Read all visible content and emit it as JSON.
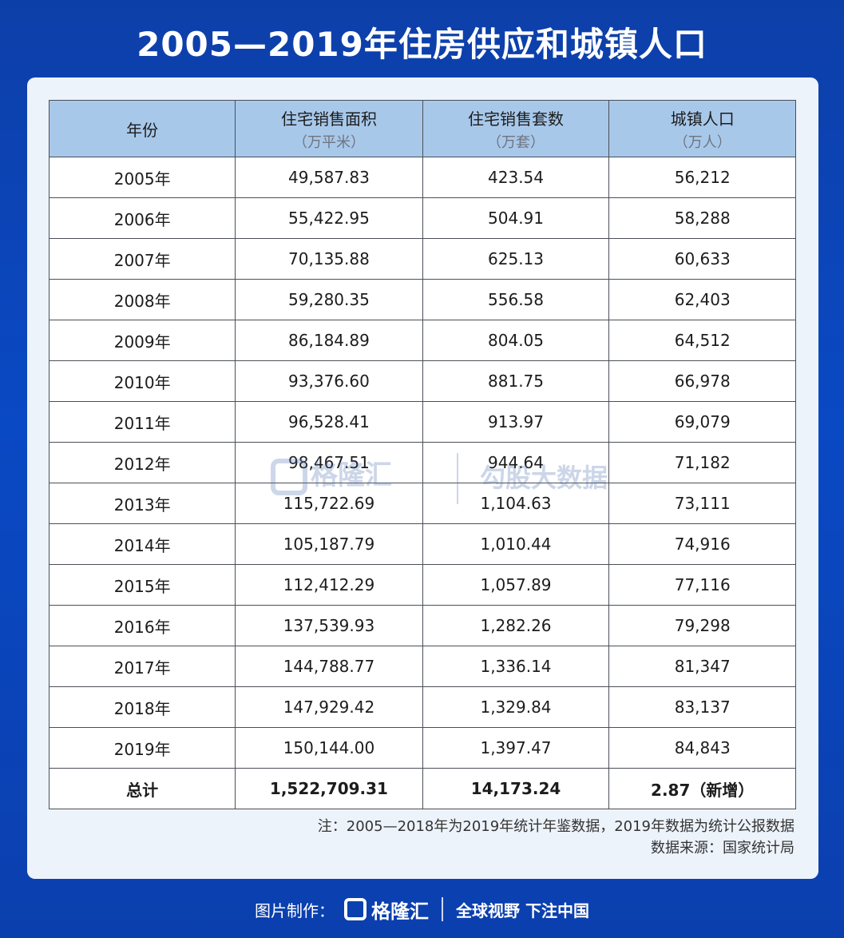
{
  "title": "2005—2019年住房供应和城镇人口",
  "header": {
    "year": "年份",
    "area": "住宅销售面积",
    "area_unit": "（万平米）",
    "units": "住宅销售套数",
    "units_unit": "（万套）",
    "pop": "城镇人口",
    "pop_unit": "（万人）"
  },
  "rows": [
    {
      "year": "2005年",
      "area": "49,587.83",
      "units": "423.54",
      "pop": "56,212"
    },
    {
      "year": "2006年",
      "area": "55,422.95",
      "units": "504.91",
      "pop": "58,288"
    },
    {
      "year": "2007年",
      "area": "70,135.88",
      "units": "625.13",
      "pop": "60,633"
    },
    {
      "year": "2008年",
      "area": "59,280.35",
      "units": "556.58",
      "pop": "62,403"
    },
    {
      "year": "2009年",
      "area": "86,184.89",
      "units": "804.05",
      "pop": "64,512"
    },
    {
      "year": "2010年",
      "area": "93,376.60",
      "units": "881.75",
      "pop": "66,978"
    },
    {
      "year": "2011年",
      "area": "96,528.41",
      "units": "913.97",
      "pop": "69,079"
    },
    {
      "year": "2012年",
      "area": "98,467.51",
      "units": "944.64",
      "pop": "71,182"
    },
    {
      "year": "2013年",
      "area": "115,722.69",
      "units": "1,104.63",
      "pop": "73,111"
    },
    {
      "year": "2014年",
      "area": "105,187.79",
      "units": "1,010.44",
      "pop": "74,916"
    },
    {
      "year": "2015年",
      "area": "112,412.29",
      "units": "1,057.89",
      "pop": "77,116"
    },
    {
      "year": "2016年",
      "area": "137,539.93",
      "units": "1,282.26",
      "pop": "79,298"
    },
    {
      "year": "2017年",
      "area": "144,788.77",
      "units": "1,336.14",
      "pop": "81,347"
    },
    {
      "year": "2018年",
      "area": "147,929.42",
      "units": "1,329.84",
      "pop": "83,137"
    },
    {
      "year": "2019年",
      "area": "150,144.00",
      "units": "1,397.47",
      "pop": "84,843"
    }
  ],
  "total": {
    "label": "总计",
    "area": "1,522,709.31",
    "units": "14,173.24",
    "pop": "2.87（新增）"
  },
  "notes": {
    "line1": "注：2005—2018年为2019年统计年鉴数据，2019年数据为统计公报数据",
    "line2": "数据来源：国家统计局"
  },
  "watermark": {
    "logo": "格隆汇",
    "text": "勾股大数据"
  },
  "footer": {
    "made_by": "图片制作：",
    "logo": "格隆汇",
    "slogan": "全球视野 下注中国"
  },
  "chart_data": {
    "type": "table",
    "title": "2005—2019年住房供应和城镇人口",
    "columns": [
      "年份",
      "住宅销售面积（万平米）",
      "住宅销售套数（万套）",
      "城镇人口（万人）"
    ],
    "rows": [
      [
        "2005年",
        49587.83,
        423.54,
        56212
      ],
      [
        "2006年",
        55422.95,
        504.91,
        58288
      ],
      [
        "2007年",
        70135.88,
        625.13,
        60633
      ],
      [
        "2008年",
        59280.35,
        556.58,
        62403
      ],
      [
        "2009年",
        86184.89,
        804.05,
        64512
      ],
      [
        "2010年",
        93376.6,
        881.75,
        66978
      ],
      [
        "2011年",
        96528.41,
        913.97,
        69079
      ],
      [
        "2012年",
        98467.51,
        944.64,
        71182
      ],
      [
        "2013年",
        115722.69,
        1104.63,
        73111
      ],
      [
        "2014年",
        105187.79,
        1010.44,
        74916
      ],
      [
        "2015年",
        112412.29,
        1057.89,
        77116
      ],
      [
        "2016年",
        137539.93,
        1282.26,
        79298
      ],
      [
        "2017年",
        144788.77,
        1336.14,
        81347
      ],
      [
        "2018年",
        147929.42,
        1329.84,
        83137
      ],
      [
        "2019年",
        150144.0,
        1397.47,
        84843
      ]
    ],
    "total": [
      "总计",
      1522709.31,
      14173.24,
      "2.87（新增）"
    ]
  }
}
